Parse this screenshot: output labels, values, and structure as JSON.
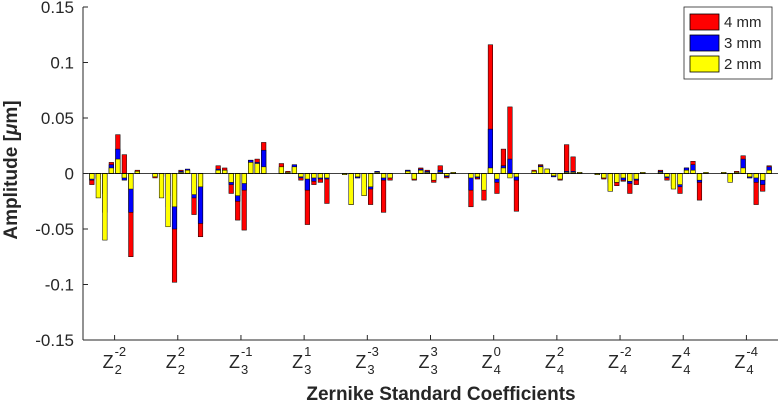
{
  "chart_data": {
    "type": "bar",
    "title": "",
    "xlabel": "Zernike Standard Coefficients",
    "ylabel_prefix": "Amplitude [",
    "ylabel_mu": "μ",
    "ylabel_suffix": "m]",
    "ylim": [
      -0.15,
      0.15
    ],
    "yticks": [
      -0.15,
      -0.1,
      -0.05,
      0,
      0.05,
      0.1,
      0.15
    ],
    "ytick_labels": [
      "-0.15",
      "-0.1",
      "-0.05",
      "0",
      "0.05",
      "0.1",
      "0.15"
    ],
    "legend_position": "top-right",
    "grid": false,
    "groups": [
      {
        "base": "Z",
        "sup": "-2",
        "sub": "2"
      },
      {
        "base": "Z",
        "sup": "2",
        "sub": "2"
      },
      {
        "base": "Z",
        "sup": "-1",
        "sub": "3"
      },
      {
        "base": "Z",
        "sup": "1",
        "sub": "3"
      },
      {
        "base": "Z",
        "sup": "-3",
        "sub": "3"
      },
      {
        "base": "Z",
        "sup": "3",
        "sub": "3"
      },
      {
        "base": "Z",
        "sup": "0",
        "sub": "4"
      },
      {
        "base": "Z",
        "sup": "2",
        "sub": "4"
      },
      {
        "base": "Z",
        "sup": "-2",
        "sub": "4"
      },
      {
        "base": "Z",
        "sup": "4",
        "sub": "4"
      },
      {
        "base": "Z",
        "sup": "-4",
        "sub": "4"
      }
    ],
    "series": [
      {
        "name": "4 mm",
        "color": "#ff0000",
        "values": [
          [
            -0.01,
            -0.005,
            -0.035,
            0.01,
            0.035,
            0.017,
            -0.075,
            0.003
          ],
          [
            -0.004,
            -0.003,
            -0.03,
            -0.098,
            0.003,
            0.003,
            -0.037,
            -0.057
          ],
          [
            0.007,
            0.005,
            -0.018,
            -0.042,
            -0.051,
            0.012,
            0.013,
            0.028
          ],
          [
            0.009,
            0.002,
            0.007,
            -0.006,
            -0.046,
            -0.01,
            -0.008,
            -0.027
          ],
          [
            -0.001,
            -0.028,
            -0.004,
            -0.02,
            -0.028,
            0.002,
            -0.035,
            -0.006
          ],
          [
            0.003,
            -0.006,
            0.005,
            0.003,
            -0.008,
            0.007,
            -0.004,
            0.001
          ],
          [
            -0.03,
            -0.005,
            -0.024,
            0.116,
            -0.018,
            0.022,
            0.06,
            -0.034
          ],
          [
            0.003,
            0.008,
            0.004,
            -0.003,
            -0.006,
            0.026,
            0.015,
            0.001
          ],
          [
            -0.001,
            -0.005,
            -0.016,
            -0.011,
            -0.007,
            -0.018,
            -0.01,
            0.001
          ],
          [
            0.003,
            -0.006,
            -0.013,
            -0.018,
            0.005,
            0.011,
            -0.024,
            0.001
          ],
          [
            0.001,
            -0.007,
            0.002,
            0.016,
            -0.004,
            -0.028,
            -0.016,
            0.007
          ]
        ]
      },
      {
        "name": "3 mm",
        "color": "#0000ff",
        "values": [
          [
            -0.006,
            -0.004,
            -0.018,
            0.008,
            0.022,
            -0.006,
            -0.035,
            0.002
          ],
          [
            -0.003,
            -0.002,
            -0.02,
            -0.05,
            0.002,
            0.004,
            -0.022,
            -0.045
          ],
          [
            0.004,
            0.003,
            -0.01,
            -0.025,
            -0.015,
            0.012,
            0.01,
            0.021
          ],
          [
            0.005,
            0.001,
            0.008,
            -0.004,
            -0.015,
            -0.007,
            -0.005,
            -0.005
          ],
          [
            -0.001,
            -0.005,
            -0.004,
            -0.012,
            -0.014,
            0.002,
            -0.006,
            -0.004
          ],
          [
            0.003,
            -0.004,
            0.004,
            0.002,
            -0.005,
            0.003,
            -0.003,
            0.001
          ],
          [
            -0.015,
            -0.004,
            -0.014,
            0.04,
            -0.008,
            0.007,
            0.013,
            -0.006
          ],
          [
            0.002,
            0.007,
            0.004,
            -0.003,
            -0.005,
            0.002,
            0.002,
            0.001
          ],
          [
            -0.001,
            -0.004,
            -0.008,
            -0.008,
            -0.006,
            -0.009,
            -0.006,
            0.001
          ],
          [
            0.002,
            -0.004,
            -0.011,
            -0.012,
            0.005,
            0.008,
            -0.008,
            0.001
          ],
          [
            0.001,
            -0.005,
            0.001,
            0.013,
            -0.004,
            -0.008,
            -0.01,
            0.006
          ]
        ]
      },
      {
        "name": "2 mm",
        "color": "#ffff00",
        "values": [
          [
            -0.005,
            -0.022,
            -0.06,
            0.005,
            0.013,
            -0.004,
            -0.014,
            0.002
          ],
          [
            -0.003,
            -0.022,
            -0.048,
            -0.03,
            0.001,
            0.003,
            -0.019,
            -0.012
          ],
          [
            0.003,
            0.003,
            -0.008,
            -0.02,
            -0.009,
            0.01,
            0.009,
            0.006
          ],
          [
            0.006,
            0.001,
            0.006,
            -0.003,
            -0.005,
            -0.004,
            -0.004,
            -0.004
          ],
          [
            -0.001,
            -0.028,
            -0.003,
            -0.02,
            -0.012,
            0.001,
            -0.004,
            -0.004
          ],
          [
            0.002,
            -0.005,
            0.003,
            0.001,
            -0.006,
            0.001,
            -0.002,
            0.001
          ],
          [
            -0.004,
            -0.003,
            -0.015,
            0.005,
            -0.005,
            0.005,
            -0.004,
            -0.003
          ],
          [
            0.002,
            0.006,
            0.004,
            -0.002,
            -0.005,
            0.001,
            0.001,
            0.001
          ],
          [
            -0.001,
            -0.004,
            -0.016,
            -0.008,
            -0.004,
            -0.007,
            -0.005,
            0.001
          ],
          [
            0.001,
            -0.003,
            -0.014,
            -0.01,
            0.003,
            0.003,
            -0.006,
            0.001
          ],
          [
            0.001,
            -0.008,
            0.001,
            0.005,
            -0.003,
            -0.004,
            -0.006,
            0.003
          ]
        ]
      }
    ]
  }
}
